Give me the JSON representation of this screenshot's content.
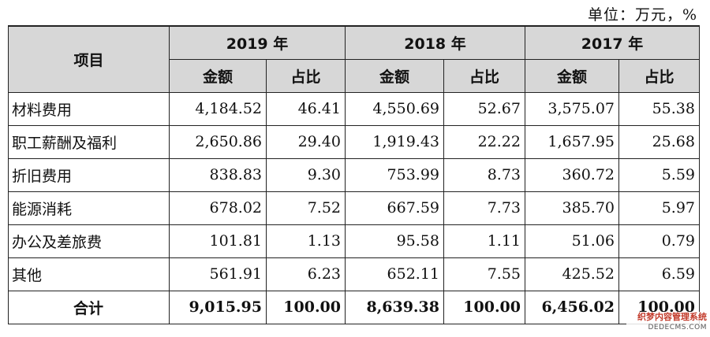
{
  "unit_label": "单位：万元，%",
  "header": {
    "item_label": "项目",
    "years": [
      "2019 年",
      "2018 年",
      "2017 年"
    ],
    "amount_label": "金额",
    "ratio_label": "占比"
  },
  "rows": [
    {
      "name": "材料费用",
      "cells": [
        "4,184.52",
        "46.41",
        "4,550.69",
        "52.67",
        "3,575.07",
        "55.38"
      ]
    },
    {
      "name": "职工薪酬及福利",
      "cells": [
        "2,650.86",
        "29.40",
        "1,919.43",
        "22.22",
        "1,657.95",
        "25.68"
      ]
    },
    {
      "name": "折旧费用",
      "cells": [
        "838.83",
        "9.30",
        "753.99",
        "8.73",
        "360.72",
        "5.59"
      ]
    },
    {
      "name": "能源消耗",
      "cells": [
        "678.02",
        "7.52",
        "667.59",
        "7.73",
        "385.70",
        "5.97"
      ]
    },
    {
      "name": "办公及差旅费",
      "cells": [
        "101.81",
        "1.13",
        "95.58",
        "1.11",
        "51.06",
        "0.79"
      ]
    },
    {
      "name": "其他",
      "cells": [
        "561.91",
        "6.23",
        "652.11",
        "7.55",
        "425.52",
        "6.59"
      ]
    },
    {
      "name": "合计",
      "cells": [
        "9,015.95",
        "100.00",
        "8,639.38",
        "100.00",
        "6,456.02",
        "100.00"
      ]
    }
  ],
  "watermark": {
    "line1": "织梦内容管理系统",
    "line2": "DEDECMS.COM"
  }
}
